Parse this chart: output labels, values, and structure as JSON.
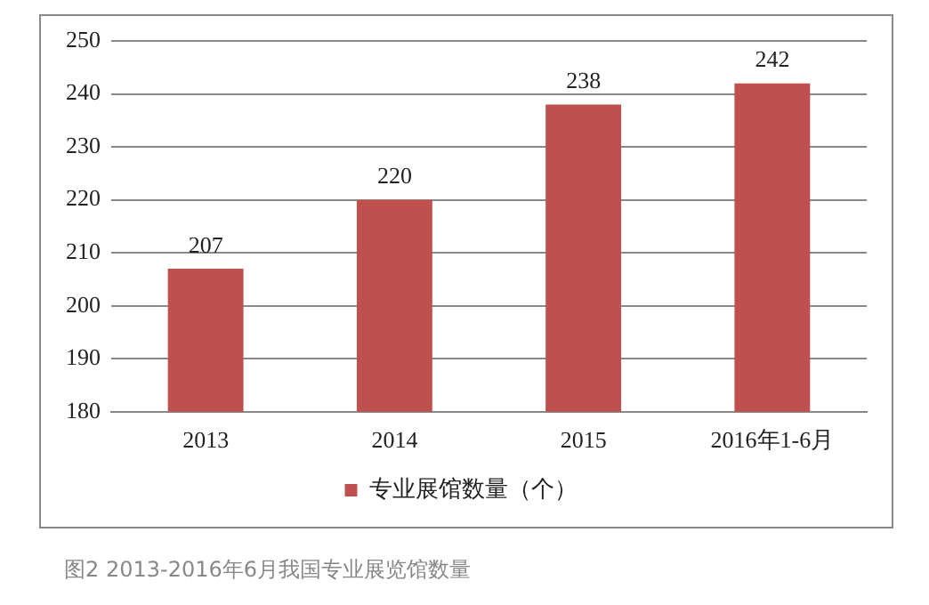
{
  "chart_data": {
    "type": "bar",
    "categories": [
      "2013",
      "2014",
      "2015",
      "2016年1-6月"
    ],
    "series": [
      {
        "name": "专业展馆数量（个）",
        "color": "#c0504d",
        "values": [
          207,
          220,
          238,
          242
        ]
      }
    ],
    "ylim": [
      180,
      250
    ],
    "yticks": [
      180,
      190,
      200,
      210,
      220,
      230,
      240,
      250
    ],
    "grid": "y",
    "legend": "bottom",
    "data_labels": true,
    "annotations": [
      "图2 2013-2016年6月我国专业展览馆数量"
    ]
  }
}
